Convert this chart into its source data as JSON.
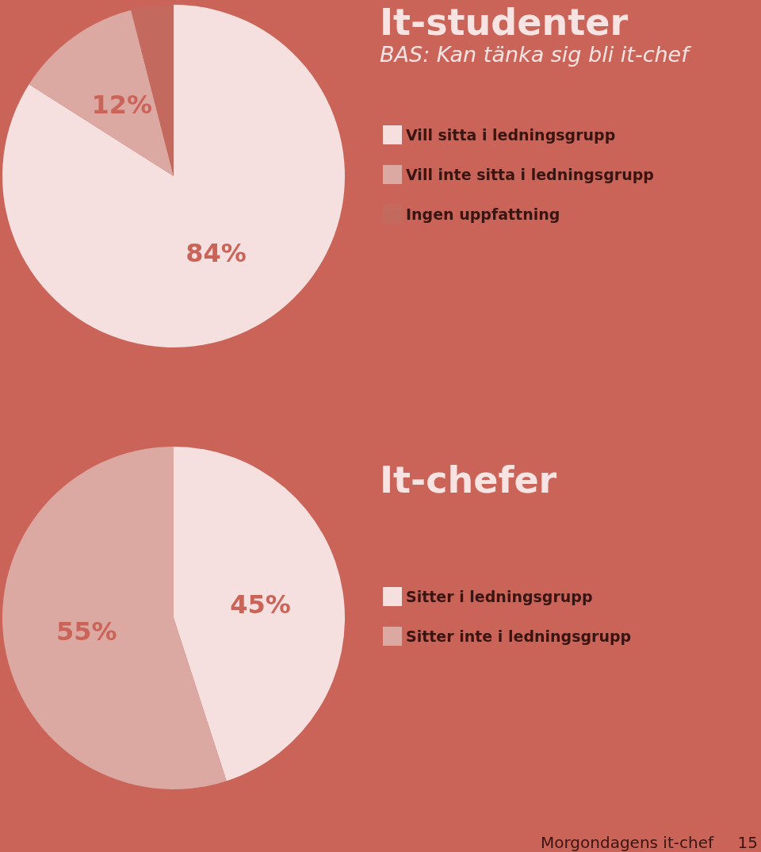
{
  "chart_data": [
    {
      "type": "pie",
      "title": "It-studenter",
      "subtitle": "BAS: Kan tänka sig bli it-chef",
      "categories": [
        "Vill sitta i ledningsgrupp",
        "Vill inte sitta i ledningsgrupp",
        "Ingen uppfattning"
      ],
      "values": [
        84,
        12,
        4
      ],
      "value_labels": [
        "84%",
        "12%",
        null
      ],
      "colors": [
        "#f5e0df",
        "#dba8a2",
        "#c4695e"
      ],
      "legend": "right"
    },
    {
      "type": "pie",
      "title": "It-chefer",
      "categories": [
        "Sitter i ledningsgrupp",
        "Sitter inte i ledningsgrupp"
      ],
      "values": [
        45,
        55
      ],
      "value_labels": [
        "45%",
        "55%"
      ],
      "colors": [
        "#f5e0df",
        "#dba8a2"
      ],
      "legend": "right",
      "annotations": [
        "Morgondagens it-chef",
        "15"
      ]
    }
  ]
}
